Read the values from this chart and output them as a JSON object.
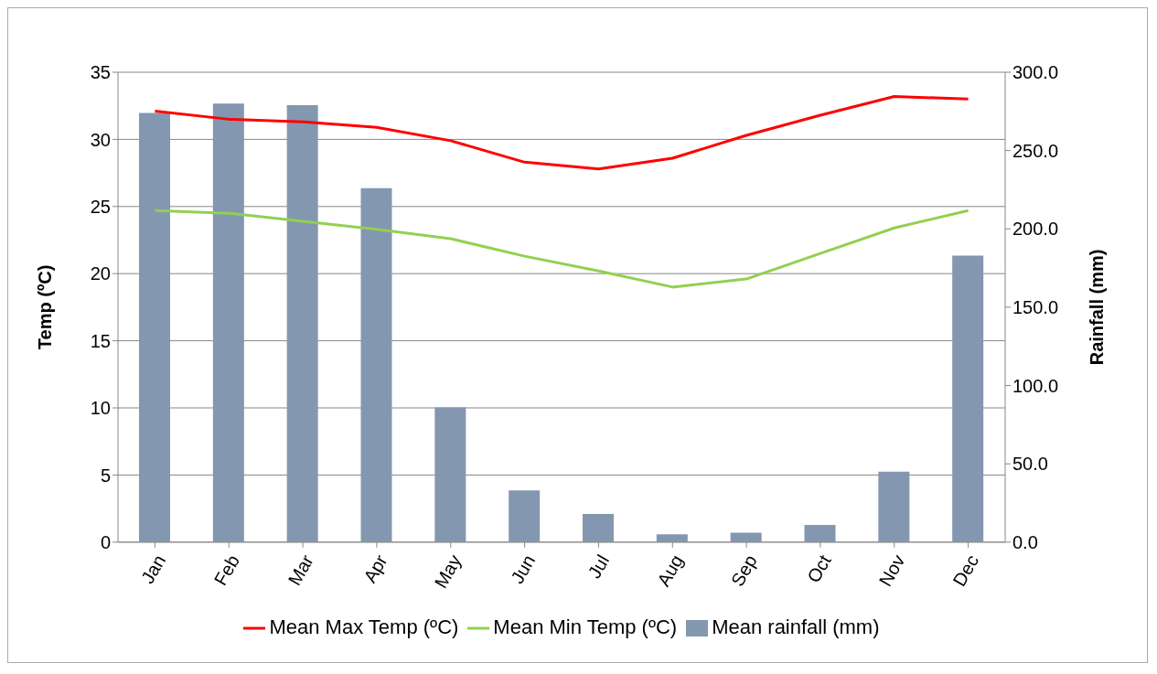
{
  "chart_data": {
    "type": "line",
    "categories": [
      "Jan",
      "Feb",
      "Mar",
      "Apr",
      "May",
      "Jun",
      "Jul",
      "Aug",
      "Sep",
      "Oct",
      "Nov",
      "Dec"
    ],
    "series": [
      {
        "name": "Mean rainfall (mm)",
        "type": "bar",
        "axis": "y2",
        "color": "#8497b0",
        "values": [
          274,
          280,
          279,
          226,
          86,
          33,
          18,
          5,
          6,
          11,
          45,
          183
        ]
      },
      {
        "name": "Mean Max Temp (ºC)",
        "color": "#ff0000",
        "values": [
          32.1,
          31.5,
          31.3,
          30.9,
          29.9,
          28.3,
          27.8,
          28.6,
          30.3,
          31.8,
          33.2,
          33.0
        ]
      },
      {
        "name": "Mean Min Temp (ºC)",
        "color": "#92d050",
        "values": [
          24.7,
          24.5,
          23.9,
          23.3,
          22.6,
          21.3,
          20.2,
          19.0,
          19.6,
          21.5,
          23.4,
          24.7
        ]
      }
    ],
    "ylabel": "Temp (ºC)",
    "y2label": "Rainfall (mm)",
    "ylim": [
      0,
      35
    ],
    "yticks": [
      0,
      5,
      10,
      15,
      20,
      25,
      30,
      35
    ],
    "y2lim": [
      0,
      300
    ],
    "y2ticks": [
      {
        "value": 0,
        "label": "0.0"
      },
      {
        "value": 50,
        "label": "50.0"
      },
      {
        "value": 100,
        "label": "100.0"
      },
      {
        "value": 150,
        "label": "150.0"
      },
      {
        "value": 200,
        "label": "200.0"
      },
      {
        "value": 250,
        "label": "250.0"
      },
      {
        "value": 300,
        "label": "300.0"
      }
    ],
    "grid": "y",
    "legend": "bottom",
    "marker": "none",
    "line_style": "solid"
  }
}
